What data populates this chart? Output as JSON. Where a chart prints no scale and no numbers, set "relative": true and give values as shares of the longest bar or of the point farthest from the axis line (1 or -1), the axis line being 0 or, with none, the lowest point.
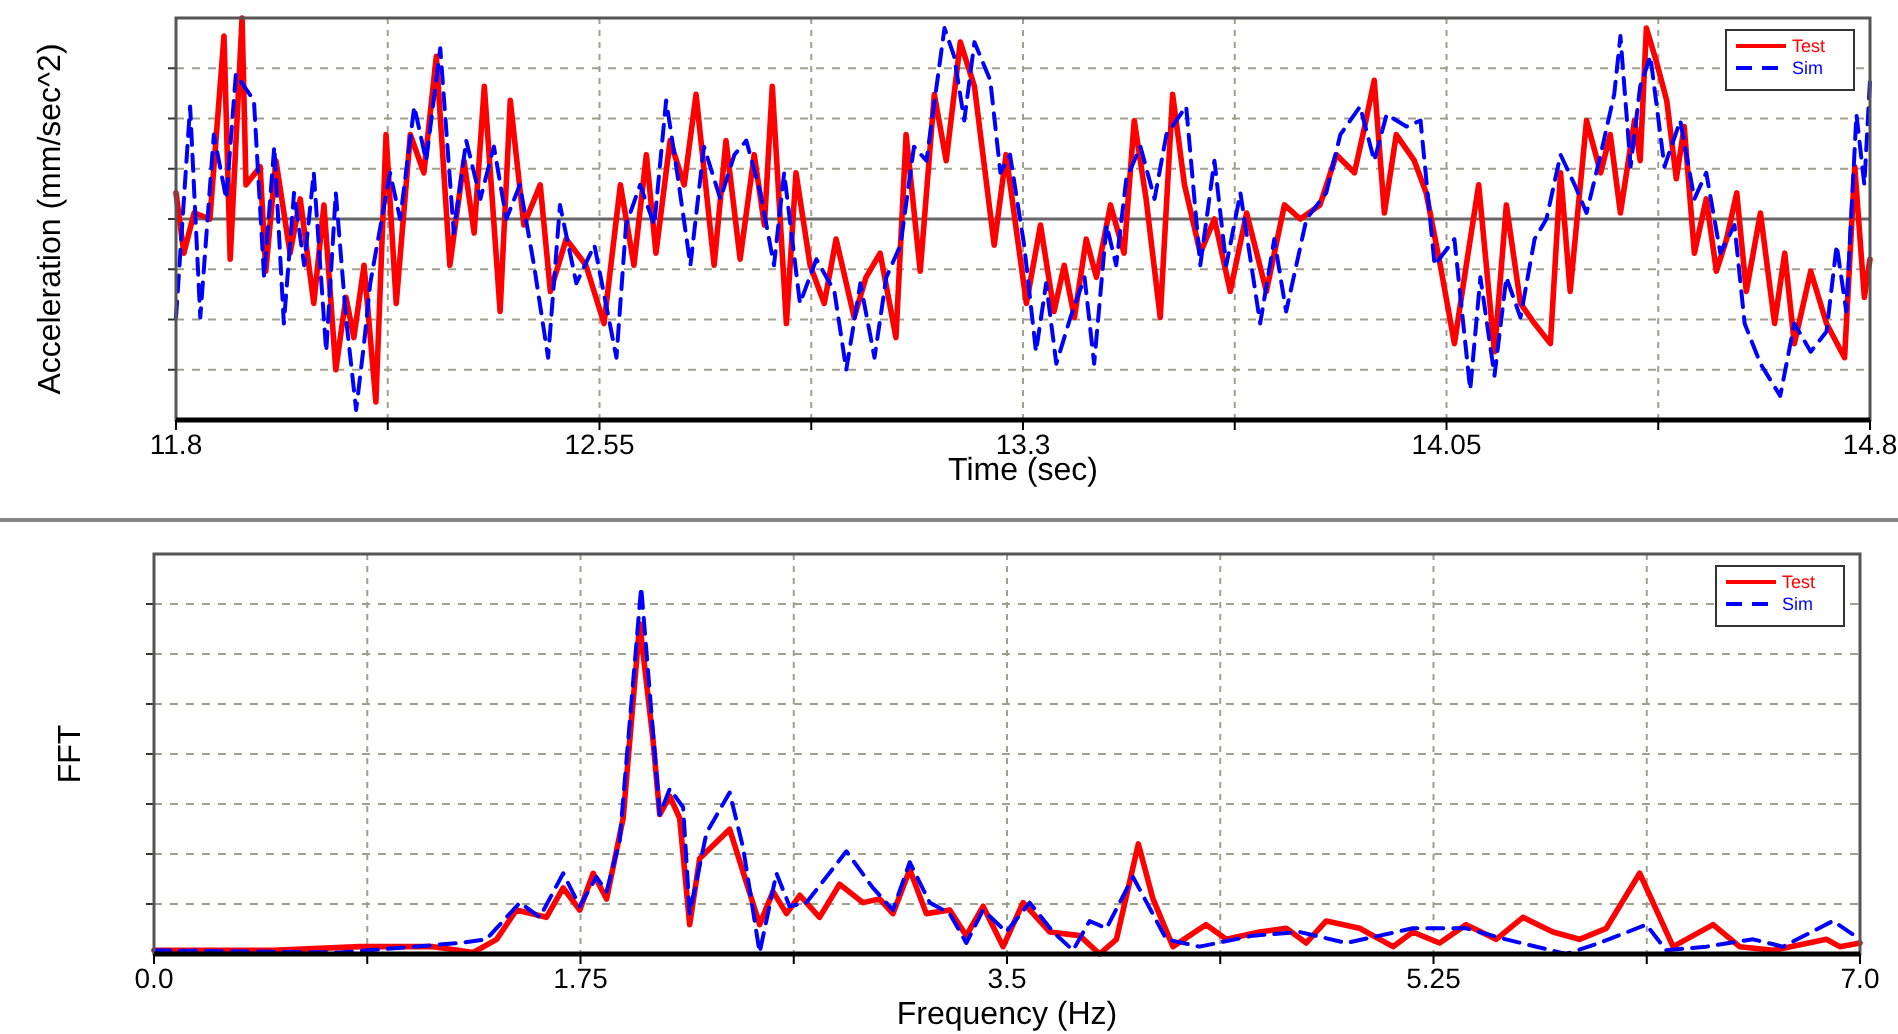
{
  "chart_data": [
    {
      "type": "line",
      "relative": true,
      "xlabel": "Time (sec)",
      "ylabel": "Acceleration (mm/sec^2)",
      "xlim": [
        11.8,
        14.8
      ],
      "xticks": [
        11.8,
        {
          "value": 12.175,
          "label": null
        },
        12.55,
        {
          "value": 12.925,
          "label": null
        },
        13.3,
        {
          "value": 13.675,
          "label": null
        },
        14.05,
        {
          "value": 14.425,
          "label": null
        },
        14.8
      ],
      "grid": true,
      "legend": "top right",
      "series": [
        {
          "name": "Test",
          "color": "#ff0000",
          "line_style": "solid",
          "x": [
            11.8,
            11.814,
            11.832,
            11.86,
            11.885,
            11.896,
            11.917,
            11.924,
            11.949,
            11.959,
            11.977,
            12.002,
            12.02,
            12.044,
            12.062,
            12.083,
            12.101,
            12.115,
            12.133,
            12.154,
            12.172,
            12.19,
            12.215,
            12.239,
            12.261,
            12.285,
            12.31,
            12.328,
            12.346,
            12.374,
            12.392,
            12.416,
            12.445,
            12.463,
            12.491,
            12.526,
            12.558,
            12.587,
            12.611,
            12.633,
            12.65,
            12.675,
            12.7,
            12.721,
            12.753,
            12.774,
            12.799,
            12.824,
            12.842,
            12.856,
            12.881,
            12.898,
            12.923,
            12.948,
            12.969,
            13.001,
            13.022,
            13.047,
            13.075,
            13.093,
            13.118,
            13.143,
            13.164,
            13.189,
            13.214,
            13.249,
            13.27,
            13.306,
            13.331,
            13.355,
            13.373,
            13.391,
            13.412,
            13.43,
            13.455,
            13.479,
            13.497,
            13.518,
            13.543,
            13.565,
            13.586,
            13.614,
            13.639,
            13.667,
            13.696,
            13.731,
            13.763,
            13.791,
            13.826,
            13.855,
            13.887,
            13.905,
            13.922,
            13.94,
            13.961,
            13.993,
            14.014,
            14.039,
            14.064,
            14.085,
            14.107,
            14.135,
            14.156,
            14.181,
            14.206,
            14.234,
            14.252,
            14.269,
            14.298,
            14.323,
            14.34,
            14.358,
            14.383,
            14.393,
            14.404,
            14.422,
            14.44,
            14.457,
            14.471,
            14.489,
            14.51,
            14.528,
            14.546,
            14.564,
            14.581,
            14.606,
            14.631,
            14.649,
            14.666,
            14.695,
            14.723,
            14.755,
            14.773,
            14.79,
            14.8
          ],
          "values": [
            0.13,
            -0.17,
            0.03,
            0,
            0.91,
            -0.2,
            1.0,
            0.17,
            0.26,
            -0.26,
            0.29,
            -0.17,
            0.1,
            -0.42,
            0.07,
            -0.75,
            -0.39,
            -0.59,
            -0.23,
            -0.91,
            0.42,
            -0.42,
            0.42,
            0.23,
            0.81,
            -0.23,
            0.29,
            -0.07,
            0.66,
            -0.46,
            0.59,
            -0.03,
            0.17,
            -0.36,
            -0.1,
            -0.23,
            -0.52,
            0.17,
            -0.23,
            0.32,
            -0.17,
            0.39,
            0.17,
            0.62,
            -0.23,
            0.39,
            -0.2,
            0.32,
            -0.03,
            0.66,
            -0.52,
            0.23,
            -0.23,
            -0.42,
            -0.1,
            -0.49,
            -0.29,
            -0.17,
            -0.59,
            0.42,
            -0.26,
            0.62,
            0.29,
            0.88,
            0.66,
            -0.13,
            0.32,
            -0.42,
            -0.03,
            -0.46,
            -0.23,
            -0.49,
            -0.1,
            -0.29,
            0.07,
            -0.17,
            0.49,
            0.1,
            -0.49,
            0.62,
            0.17,
            -0.17,
            0,
            -0.36,
            0.03,
            -0.36,
            0.07,
            0,
            0.07,
            0.32,
            0.23,
            0.46,
            0.69,
            0.03,
            0.42,
            0.29,
            0.13,
            -0.23,
            -0.62,
            -0.23,
            0.17,
            -0.66,
            0.07,
            -0.42,
            -0.52,
            -0.62,
            0.23,
            -0.36,
            0.49,
            0.23,
            0.42,
            0.03,
            0.49,
            0.29,
            0.95,
            0.78,
            0.59,
            0.2,
            0.46,
            -0.17,
            0.1,
            -0.26,
            -0.1,
            0.13,
            -0.36,
            0.03,
            -0.52,
            -0.17,
            -0.62,
            -0.26,
            -0.52,
            -0.69,
            0.26,
            -0.39,
            -0.2
          ]
        },
        {
          "name": "Sim",
          "color": "#0000ff",
          "line_style": "dashed",
          "x": [
            11.8,
            11.825,
            11.843,
            11.867,
            11.889,
            11.906,
            11.938,
            11.956,
            11.974,
            11.991,
            12.009,
            12.027,
            12.044,
            12.066,
            12.083,
            12.101,
            12.119,
            12.133,
            12.144,
            12.179,
            12.197,
            12.222,
            12.243,
            12.268,
            12.292,
            12.314,
            12.339,
            12.363,
            12.385,
            12.409,
            12.434,
            12.459,
            12.48,
            12.509,
            12.541,
            12.58,
            12.597,
            12.622,
            12.647,
            12.668,
            12.686,
            12.711,
            12.735,
            12.764,
            12.789,
            12.81,
            12.835,
            12.859,
            12.877,
            12.905,
            12.934,
            12.966,
            12.987,
            13.012,
            13.037,
            13.058,
            13.083,
            13.107,
            13.129,
            13.161,
            13.178,
            13.196,
            13.214,
            13.242,
            13.26,
            13.277,
            13.302,
            13.323,
            13.341,
            13.359,
            13.384,
            13.409,
            13.426,
            13.448,
            13.465,
            13.483,
            13.508,
            13.533,
            13.554,
            13.589,
            13.614,
            13.639,
            13.66,
            13.685,
            13.72,
            13.745,
            13.766,
            13.802,
            13.837,
            13.862,
            13.897,
            13.922,
            13.944,
            13.979,
            14.004,
            14.029,
            14.064,
            14.092,
            14.11,
            14.135,
            14.156,
            14.181,
            14.206,
            14.227,
            14.252,
            14.277,
            14.298,
            14.323,
            14.347,
            14.358,
            14.376,
            14.393,
            14.411,
            14.436,
            14.464,
            14.489,
            14.51,
            14.535,
            14.56,
            14.578,
            14.606,
            14.641,
            14.666,
            14.695,
            14.723,
            14.741,
            14.758,
            14.776,
            14.79,
            14.8
          ],
          "values": [
            -0.49,
            0.56,
            -0.49,
            0.42,
            0.1,
            0.72,
            0.59,
            -0.29,
            0.36,
            -0.52,
            0.13,
            -0.23,
            0.23,
            -0.66,
            0.13,
            -0.49,
            -0.95,
            -0.62,
            -0.32,
            0.23,
            0,
            0.56,
            0.29,
            0.85,
            -0.07,
            0.39,
            0.1,
            0.36,
            0,
            0.17,
            -0.23,
            -0.69,
            0.07,
            -0.32,
            -0.13,
            -0.69,
            -0.03,
            0.17,
            -0.03,
            0.59,
            0.26,
            -0.23,
            0.36,
            0.1,
            0.32,
            0.39,
            0.13,
            -0.23,
            0.23,
            -0.42,
            -0.2,
            -0.36,
            -0.75,
            -0.32,
            -0.69,
            -0.29,
            -0.13,
            0.36,
            0.29,
            0.95,
            0.81,
            0.49,
            0.88,
            0.69,
            0.23,
            0.32,
            -0.13,
            -0.66,
            -0.32,
            -0.72,
            -0.49,
            -0.29,
            -0.72,
            -0.03,
            -0.23,
            0.2,
            0.36,
            0.1,
            0.42,
            0.56,
            -0.23,
            0.29,
            -0.23,
            0.13,
            -0.52,
            -0.1,
            -0.46,
            0,
            0.13,
            0.42,
            0.56,
            0.29,
            0.52,
            0.46,
            0.49,
            -0.23,
            -0.1,
            -0.85,
            -0.29,
            -0.78,
            -0.29,
            -0.49,
            -0.1,
            0,
            0.32,
            0.17,
            0.03,
            0.32,
            0.62,
            0.91,
            0.26,
            0.66,
            0.81,
            0.26,
            0.49,
            0.1,
            0.23,
            -0.17,
            -0.03,
            -0.52,
            -0.72,
            -0.88,
            -0.52,
            -0.66,
            -0.56,
            -0.13,
            -0.46,
            0.52,
            0.17,
            0.69
          ]
        }
      ]
    },
    {
      "type": "line",
      "relative": true,
      "xlabel": "Frequency (Hz)",
      "ylabel": "FFT",
      "xlim": [
        0,
        7
      ],
      "xticks": [
        {
          "value": 0,
          "label": "0.0"
        },
        {
          "value": 0.875,
          "label": null
        },
        1.75,
        {
          "value": 2.625,
          "label": null
        },
        3.5,
        {
          "value": 4.375,
          "label": null
        },
        5.25,
        {
          "value": 6.125,
          "label": null
        },
        {
          "value": 7,
          "label": "7.0"
        }
      ],
      "grid": true,
      "legend": "top right",
      "series": [
        {
          "name": "Test",
          "color": "#ff0000",
          "line_style": "solid",
          "x": [
            0,
            0.49,
            0.845,
            1.146,
            1.31,
            1.406,
            1.487,
            1.61,
            1.679,
            1.747,
            1.802,
            1.857,
            1.925,
            1.993,
            2.048,
            2.075,
            2.116,
            2.157,
            2.198,
            2.239,
            2.362,
            2.485,
            2.54,
            2.595,
            2.65,
            2.731,
            2.813,
            2.909,
            2.977,
            3.032,
            3.101,
            3.169,
            3.265,
            3.333,
            3.402,
            3.484,
            3.566,
            3.675,
            3.798,
            3.88,
            3.949,
            4.039,
            4.099,
            4.181,
            4.317,
            4.4,
            4.536,
            4.646,
            4.728,
            4.81,
            4.947,
            5.084,
            5.165,
            5.275,
            5.384,
            5.507,
            5.617,
            5.74,
            5.849,
            5.959,
            6.096,
            6.233,
            6.397,
            6.506,
            6.643,
            6.862,
            6.917,
            7.0
          ],
          "values": [
            0.01,
            0.01,
            0.02,
            0.02,
            0.004,
            0.04,
            0.12,
            0.1,
            0.18,
            0.12,
            0.22,
            0.15,
            0.37,
            0.9,
            0.58,
            0.38,
            0.43,
            0.37,
            0.08,
            0.26,
            0.34,
            0.08,
            0.17,
            0.11,
            0.16,
            0.1,
            0.19,
            0.14,
            0.15,
            0.11,
            0.23,
            0.11,
            0.12,
            0.05,
            0.13,
            0.02,
            0.14,
            0.06,
            0.05,
            0,
            0.04,
            0.3,
            0.15,
            0.02,
            0.08,
            0.04,
            0.06,
            0.07,
            0.03,
            0.09,
            0.07,
            0.02,
            0.06,
            0.03,
            0.08,
            0.04,
            0.1,
            0.06,
            0.04,
            0.07,
            0.22,
            0.02,
            0.08,
            0.02,
            0.01,
            0.04,
            0.02,
            0.03
          ]
        },
        {
          "name": "Sim",
          "color": "#0000ff",
          "line_style": "dashed",
          "x": [
            0,
            0.763,
            1.255,
            1.364,
            1.501,
            1.583,
            1.679,
            1.747,
            1.815,
            1.857,
            1.911,
            1.999,
            2.075,
            2.116,
            2.171,
            2.198,
            2.267,
            2.362,
            2.417,
            2.485,
            2.554,
            2.608,
            2.677,
            2.841,
            2.95,
            3.032,
            3.101,
            3.183,
            3.265,
            3.333,
            3.402,
            3.497,
            3.593,
            3.689,
            3.771,
            3.839,
            3.908,
            4.017,
            4.154,
            4.29,
            4.509,
            4.701,
            4.892,
            5.165,
            5.384,
            5.548,
            5.794,
            5.931,
            6.123,
            6.205,
            6.369,
            6.561,
            6.684,
            6.889,
            7.0
          ],
          "values": [
            0.01,
            0.004,
            0.03,
            0.04,
            0.14,
            0.1,
            0.22,
            0.13,
            0.21,
            0.17,
            0.31,
            1.0,
            0.38,
            0.45,
            0.4,
            0.11,
            0.33,
            0.44,
            0.29,
            0.004,
            0.22,
            0.13,
            0.14,
            0.28,
            0.18,
            0.12,
            0.25,
            0.14,
            0.11,
            0.03,
            0.12,
            0.06,
            0.14,
            0.06,
            0.01,
            0.09,
            0.07,
            0.21,
            0.04,
            0.02,
            0.05,
            0.06,
            0.03,
            0.07,
            0.07,
            0.04,
            0,
            0.03,
            0.08,
            0.01,
            0.02,
            0.04,
            0.02,
            0.09,
            0.04
          ]
        }
      ]
    }
  ]
}
